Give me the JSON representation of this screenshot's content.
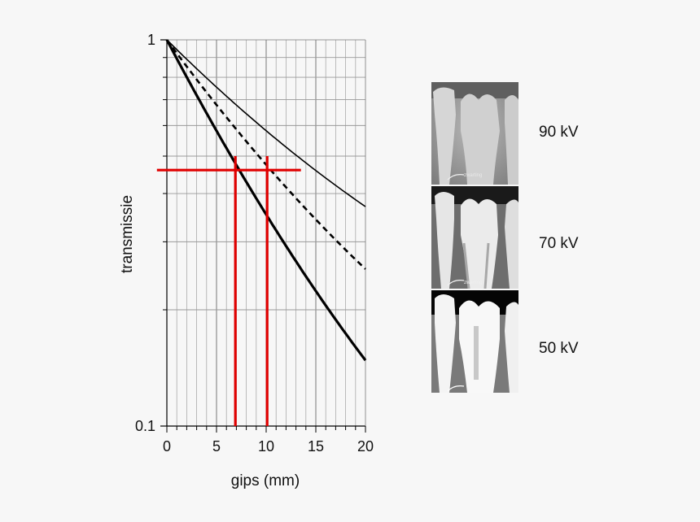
{
  "chart_data": {
    "type": "line",
    "xlabel": "gips (mm)",
    "ylabel": "transmissie",
    "xlim": [
      0,
      20
    ],
    "ylim": [
      0.1,
      1
    ],
    "y_scale": "log",
    "x_ticks": [
      0,
      5,
      10,
      15,
      20
    ],
    "y_tick_labels": [
      "1",
      "0.1"
    ],
    "grid": true,
    "series": [
      {
        "style": "thin-solid",
        "color": "#000000",
        "x": [
          0,
          20
        ],
        "y": [
          1.0,
          0.37
        ]
      },
      {
        "style": "dashed",
        "color": "#000000",
        "x": [
          0,
          20
        ],
        "y": [
          1.0,
          0.255
        ]
      },
      {
        "style": "thick-solid",
        "color": "#000000",
        "x": [
          0,
          20
        ],
        "y": [
          1.0,
          0.148
        ]
      }
    ],
    "annotations": [
      {
        "type": "hline",
        "color": "#e00000",
        "y": 0.46,
        "x_range": [
          -1,
          13.5
        ]
      },
      {
        "type": "vline",
        "color": "#e00000",
        "x": 6.9,
        "y_range": [
          0.1,
          0.5
        ]
      },
      {
        "type": "vline",
        "color": "#e00000",
        "x": 10.1,
        "y_range": [
          0.1,
          0.5
        ]
      }
    ]
  },
  "images": [
    {
      "label": "90 kV",
      "kind": "dental-xray-90kv"
    },
    {
      "label": "70 kV",
      "kind": "dental-xray-70kv"
    },
    {
      "label": "50 kV",
      "kind": "dental-xray-50kv"
    }
  ]
}
